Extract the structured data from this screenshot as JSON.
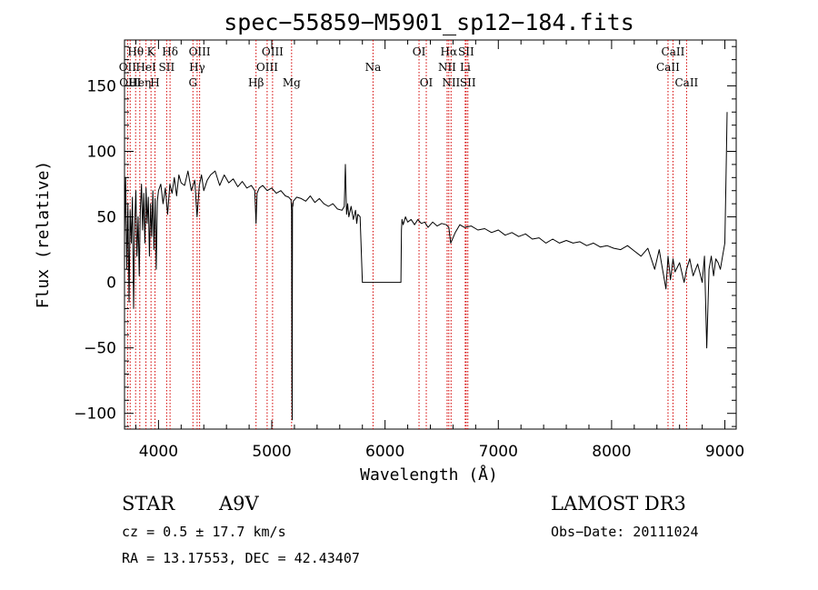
{
  "chart_data": {
    "type": "line",
    "title": "spec−55859−M5901_sp12−184.fits",
    "xlabel": "Wavelength (Å)",
    "ylabel": "Flux (relative)",
    "xlim": [
      3700,
      9100
    ],
    "ylim": [
      -112,
      185
    ],
    "x_ticks": [
      4000,
      5000,
      6000,
      7000,
      8000,
      9000
    ],
    "y_ticks": [
      -100,
      -50,
      0,
      50,
      100,
      150
    ],
    "x_tick_labels": [
      "4000",
      "5000",
      "6000",
      "7000",
      "8000",
      "9000"
    ],
    "y_tick_labels": [
      "−100",
      "−50",
      "0",
      "50",
      "100",
      "150"
    ],
    "series": [
      {
        "name": "flux",
        "x": [
          3700,
          3710,
          3720,
          3730,
          3740,
          3750,
          3760,
          3770,
          3780,
          3790,
          3800,
          3810,
          3820,
          3830,
          3840,
          3850,
          3860,
          3870,
          3880,
          3890,
          3900,
          3910,
          3920,
          3930,
          3940,
          3950,
          3960,
          3970,
          3980,
          3990,
          4000,
          4020,
          4040,
          4060,
          4080,
          4100,
          4120,
          4140,
          4160,
          4180,
          4200,
          4230,
          4260,
          4290,
          4320,
          4340,
          4360,
          4380,
          4400,
          4430,
          4460,
          4500,
          4540,
          4580,
          4620,
          4660,
          4700,
          4740,
          4780,
          4820,
          4850,
          4861,
          4870,
          4890,
          4920,
          4960,
          5000,
          5040,
          5080,
          5120,
          5150,
          5170,
          5175,
          5178,
          5180,
          5183,
          5186,
          5190,
          5220,
          5260,
          5300,
          5340,
          5380,
          5420,
          5460,
          5500,
          5540,
          5580,
          5620,
          5640,
          5650,
          5660,
          5670,
          5680,
          5700,
          5720,
          5740,
          5750,
          5760,
          5780,
          5800,
          5900,
          6000,
          6100,
          6140,
          6145,
          6150,
          6160,
          6180,
          6200,
          6230,
          6260,
          6290,
          6320,
          6350,
          6380,
          6420,
          6460,
          6500,
          6540,
          6563,
          6580,
          6620,
          6660,
          6700,
          6760,
          6820,
          6880,
          6940,
          7000,
          7060,
          7120,
          7180,
          7240,
          7300,
          7360,
          7420,
          7480,
          7540,
          7600,
          7660,
          7720,
          7780,
          7840,
          7900,
          7960,
          8020,
          8080,
          8140,
          8200,
          8260,
          8320,
          8380,
          8420,
          8440,
          8460,
          8480,
          8498,
          8520,
          8542,
          8560,
          8600,
          8640,
          8662,
          8690,
          8720,
          8760,
          8800,
          8820,
          8840,
          8860,
          8880,
          8900,
          8920,
          8940,
          8960,
          8980,
          9000,
          9010,
          9020
        ],
        "y": [
          35,
          80,
          10,
          60,
          -15,
          55,
          30,
          65,
          -20,
          45,
          70,
          20,
          50,
          5,
          55,
          75,
          40,
          68,
          30,
          72,
          45,
          65,
          20,
          60,
          35,
          70,
          25,
          64,
          10,
          62,
          70,
          75,
          60,
          72,
          52,
          75,
          68,
          80,
          66,
          82,
          76,
          74,
          85,
          70,
          78,
          50,
          74,
          82,
          70,
          78,
          82,
          85,
          74,
          82,
          76,
          79,
          73,
          77,
          72,
          74,
          70,
          45,
          68,
          72,
          74,
          70,
          72,
          68,
          70,
          66,
          65,
          63,
          55,
          -80,
          -105,
          60,
          58,
          62,
          65,
          64,
          62,
          66,
          61,
          64,
          60,
          58,
          60,
          56,
          55,
          58,
          90,
          52,
          60,
          50,
          58,
          48,
          55,
          45,
          52,
          50,
          0,
          0,
          0,
          0,
          0,
          40,
          48,
          44,
          50,
          46,
          48,
          44,
          48,
          45,
          46,
          42,
          46,
          43,
          45,
          44,
          42,
          30,
          38,
          44,
          42,
          43,
          40,
          41,
          38,
          40,
          36,
          38,
          35,
          37,
          33,
          34,
          30,
          33,
          30,
          32,
          30,
          31,
          28,
          30,
          27,
          28,
          26,
          25,
          28,
          24,
          20,
          26,
          10,
          25,
          15,
          5,
          -5,
          20,
          2,
          18,
          8,
          15,
          0,
          10,
          18,
          5,
          14,
          0,
          20,
          -50,
          10,
          20,
          5,
          18,
          15,
          10,
          20,
          30,
          80,
          130
        ]
      }
    ],
    "line_markers": [
      {
        "label": "Hθ",
        "wl": 3798,
        "row": 0
      },
      {
        "label": "OII",
        "wl": 3727,
        "row": 1
      },
      {
        "label": "OIII",
        "wl": 3750,
        "row": 2
      },
      {
        "label": "Heη",
        "wl": 3835,
        "row": 2
      },
      {
        "label": "HeI",
        "wl": 3889,
        "row": 1
      },
      {
        "label": "K",
        "wl": 3934,
        "row": 0
      },
      {
        "label": "H",
        "wl": 3969,
        "row": 2
      },
      {
        "label": "SII",
        "wl": 4072,
        "row": 1
      },
      {
        "label": "Hδ",
        "wl": 4102,
        "row": 0
      },
      {
        "label": "G",
        "wl": 4304,
        "row": 2
      },
      {
        "label": "Hγ",
        "wl": 4341,
        "row": 1
      },
      {
        "label": "OIII",
        "wl": 4363,
        "row": 0
      },
      {
        "label": "Hβ",
        "wl": 4861,
        "row": 2
      },
      {
        "label": "OIII",
        "wl": 4959,
        "row": 1
      },
      {
        "label": "OIII",
        "wl": 5007,
        "row": 0
      },
      {
        "label": "Mg",
        "wl": 5175,
        "row": 2
      },
      {
        "label": "Na",
        "wl": 5894,
        "row": 1
      },
      {
        "label": "OI",
        "wl": 6300,
        "row": 0
      },
      {
        "label": "OI",
        "wl": 6364,
        "row": 2
      },
      {
        "label": "NII",
        "wl": 6548,
        "row": 1
      },
      {
        "label": "Hα",
        "wl": 6563,
        "row": 0
      },
      {
        "label": "NII",
        "wl": 6583,
        "row": 2
      },
      {
        "label": "SII",
        "wl": 6716,
        "row": 0
      },
      {
        "label": "Li",
        "wl": 6708,
        "row": 1
      },
      {
        "label": "SII",
        "wl": 6731,
        "row": 2
      },
      {
        "label": "CaII",
        "wl": 8498,
        "row": 1
      },
      {
        "label": "CaII",
        "wl": 8542,
        "row": 0
      },
      {
        "label": "CaII",
        "wl": 8662,
        "row": 2
      }
    ]
  },
  "info": {
    "object_type": "STAR",
    "subclass": "A9V",
    "survey": "LAMOST DR3",
    "redshift": "cz = 0.5 ± 17.7 km/s",
    "obs_date": "Obs−Date: 20111024",
    "coords": "RA =  13.17553, DEC =  42.43407"
  }
}
